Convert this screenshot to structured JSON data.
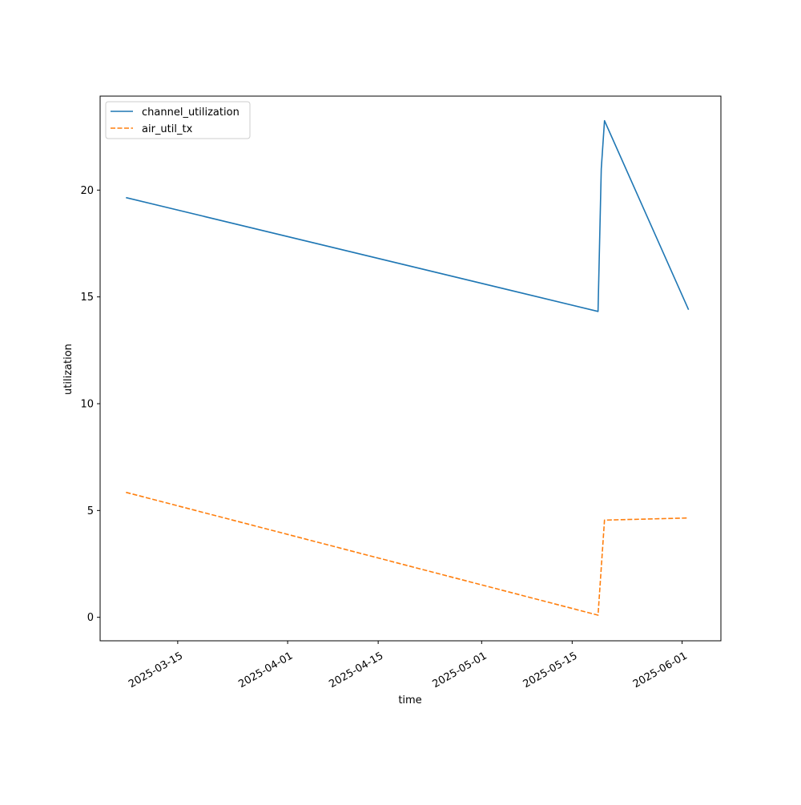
{
  "chart_data": {
    "type": "line",
    "xlabel": "time",
    "ylabel": "utilization",
    "x_type": "date",
    "xlim": [
      "2025-03-03",
      "2025-06-07"
    ],
    "ylim": [
      -1.1,
      24.4
    ],
    "grid": false,
    "legend_position": "top-left",
    "x_ticks": [
      "2025-03-15",
      "2025-04-01",
      "2025-04-15",
      "2025-05-01",
      "2025-05-15",
      "2025-06-01"
    ],
    "y_ticks": [
      0,
      5,
      10,
      15,
      20
    ],
    "series": [
      {
        "name": "channel_utilization",
        "color": "#1f77b4",
        "dash": "solid",
        "points": [
          [
            "2025-03-07",
            19.65
          ],
          [
            "2025-05-19",
            14.32
          ],
          [
            "2025-05-19T12:00",
            21.0
          ],
          [
            "2025-05-20",
            23.25
          ],
          [
            "2025-06-02",
            14.4
          ]
        ]
      },
      {
        "name": "air_util_tx",
        "color": "#ff7f0e",
        "dash": "dashed",
        "points": [
          [
            "2025-03-07",
            5.85
          ],
          [
            "2025-05-19",
            0.1
          ],
          [
            "2025-05-20",
            4.55
          ],
          [
            "2025-06-02",
            4.65
          ]
        ]
      }
    ]
  }
}
